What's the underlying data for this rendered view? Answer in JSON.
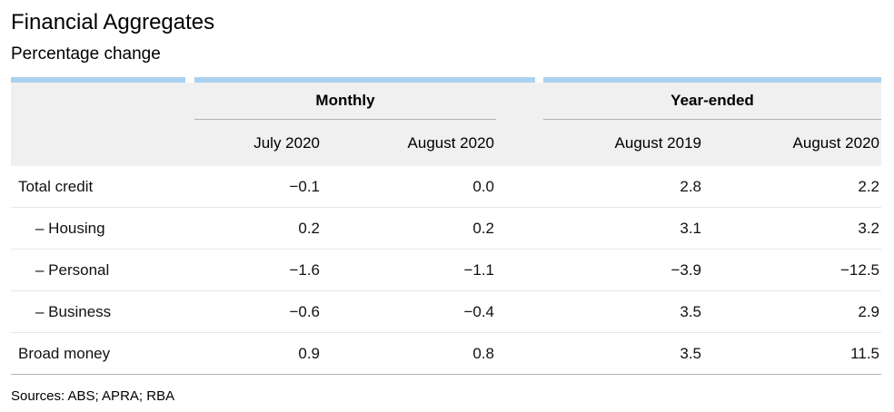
{
  "title": "Financial Aggregates",
  "subtitle": "Percentage change",
  "table": {
    "col_groups": [
      {
        "label": "Monthly"
      },
      {
        "label": "Year-ended"
      }
    ],
    "col_headers": [
      "July 2020",
      "August 2020",
      "August 2019",
      "August 2020"
    ],
    "rows": [
      {
        "label": "Total credit",
        "values": [
          "−0.1",
          "0.0",
          "2.8",
          "2.2"
        ]
      },
      {
        "label": "– Housing",
        "values": [
          "0.2",
          "0.2",
          "3.1",
          "3.2"
        ]
      },
      {
        "label": "– Personal",
        "values": [
          "−1.6",
          "−1.1",
          "−3.9",
          "−12.5"
        ]
      },
      {
        "label": "– Business",
        "values": [
          "−0.6",
          "−0.4",
          "3.5",
          "2.9"
        ]
      },
      {
        "label": "Broad money",
        "values": [
          "0.9",
          "0.8",
          "3.5",
          "11.5"
        ]
      }
    ]
  },
  "footer": {
    "sources": "Sources: ABS; APRA; RBA"
  },
  "colors": {
    "accent": "#aad2f0",
    "header_bg": "#f0f0f0",
    "rule_dark": "#b3b3b3",
    "rule_light": "#e7e7e7"
  },
  "chart_data": {
    "type": "table",
    "title": "Financial Aggregates",
    "subtitle": "Percentage change",
    "column_groups": [
      {
        "label": "Monthly",
        "columns": [
          "July 2020",
          "August 2020"
        ]
      },
      {
        "label": "Year-ended",
        "columns": [
          "August 2019",
          "August 2020"
        ]
      }
    ],
    "rows": [
      {
        "label": "Total credit",
        "indent": false,
        "values": [
          -0.1,
          0.0,
          2.8,
          2.2
        ]
      },
      {
        "label": "Housing",
        "indent": true,
        "values": [
          0.2,
          0.2,
          3.1,
          3.2
        ]
      },
      {
        "label": "Personal",
        "indent": true,
        "values": [
          -1.6,
          -1.1,
          -3.9,
          -12.5
        ]
      },
      {
        "label": "Business",
        "indent": true,
        "values": [
          -0.6,
          -0.4,
          3.5,
          2.9
        ]
      },
      {
        "label": "Broad money",
        "indent": false,
        "values": [
          0.9,
          0.8,
          3.5,
          11.5
        ]
      }
    ],
    "source": "Sources: ABS; APRA; RBA"
  }
}
